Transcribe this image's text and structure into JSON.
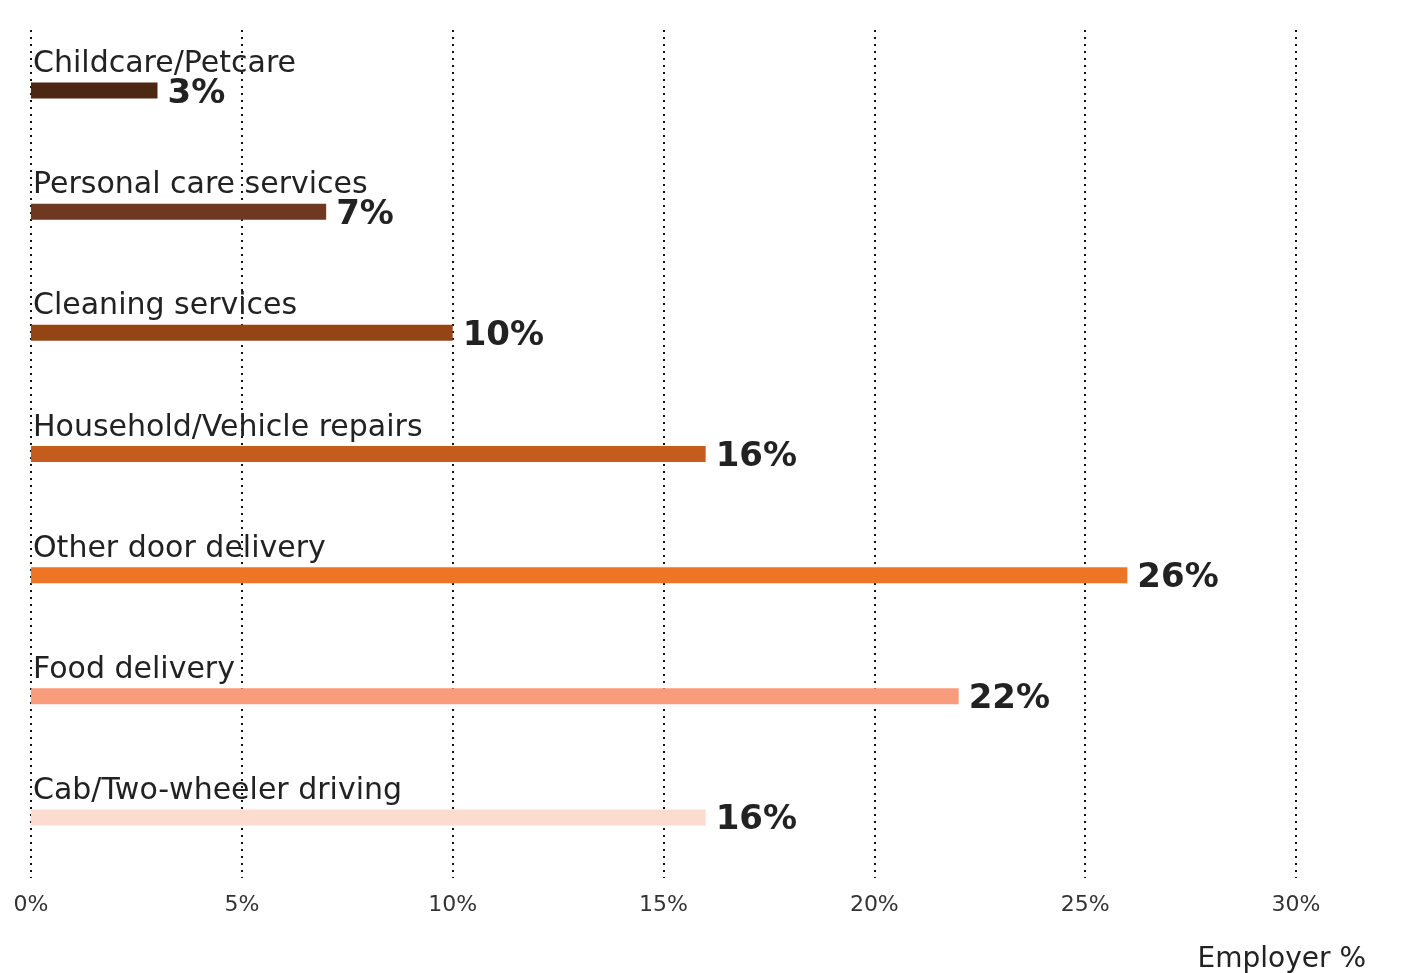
{
  "chart_data": {
    "type": "bar",
    "orientation": "horizontal",
    "xlabel": "Employer %",
    "categories": [
      "Childcare/Petcare",
      "Personal care services",
      "Cleaning services",
      "Household/Vehicle repairs",
      "Other door delivery",
      "Food delivery",
      "Cab/Two-wheeler driving"
    ],
    "values": [
      3,
      7,
      10,
      16,
      26,
      22,
      16
    ],
    "value_labels": [
      "3%",
      "7%",
      "10%",
      "16%",
      "26%",
      "22%",
      "16%"
    ],
    "colors": [
      "#4e2614",
      "#6f3821",
      "#954515",
      "#c55c1b",
      "#ef7525",
      "#f99c7c",
      "#fddcd0"
    ],
    "xlim": [
      0,
      30
    ],
    "xticks": [
      {
        "value": 0,
        "label": "0%"
      },
      {
        "value": 5,
        "label": "5%"
      },
      {
        "value": 10,
        "label": "10%"
      },
      {
        "value": 15,
        "label": "15%"
      },
      {
        "value": 20,
        "label": "20%"
      },
      {
        "value": 25,
        "label": "25%"
      },
      {
        "value": 30,
        "label": "30%"
      }
    ],
    "grid": "x"
  }
}
